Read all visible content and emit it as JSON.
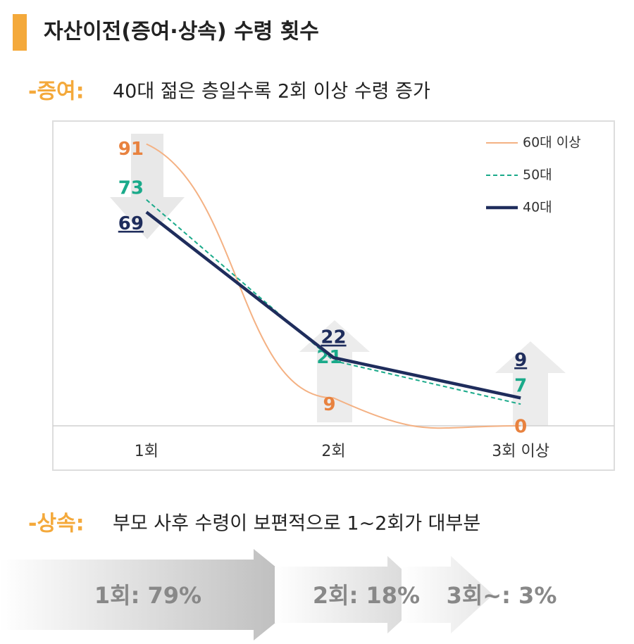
{
  "title": "자산이전(증여·상속) 수령 횟수",
  "gift": {
    "label": "-증여:",
    "text": "40대 젊은 층일수록 2회 이상 수령 증가"
  },
  "chart_data": {
    "type": "line",
    "categories": [
      "1회",
      "2회",
      "3회 이상"
    ],
    "series": [
      {
        "name": "60대 이상",
        "color": "#f4b183",
        "label_color": "#e8823f",
        "linestyle": "smooth",
        "values": [
          91,
          9,
          0
        ]
      },
      {
        "name": "50대",
        "color": "#1aaa8a",
        "label_color": "#1aaa8a",
        "linestyle": "dashed",
        "values": [
          73,
          21,
          7
        ]
      },
      {
        "name": "40대",
        "color": "#1f2d5c",
        "label_color": "#1f2d5c",
        "linestyle": "bold",
        "values": [
          69,
          22,
          9
        ]
      }
    ],
    "ylim": [
      0,
      100
    ],
    "legend": "upper right"
  },
  "inheritance": {
    "label": "-상속:",
    "text": "부모 사후 수령이 보편적으로 1~2회가 대부분",
    "items": [
      "1회: 79%",
      "2회: 18%",
      "3회~: 3%"
    ]
  }
}
